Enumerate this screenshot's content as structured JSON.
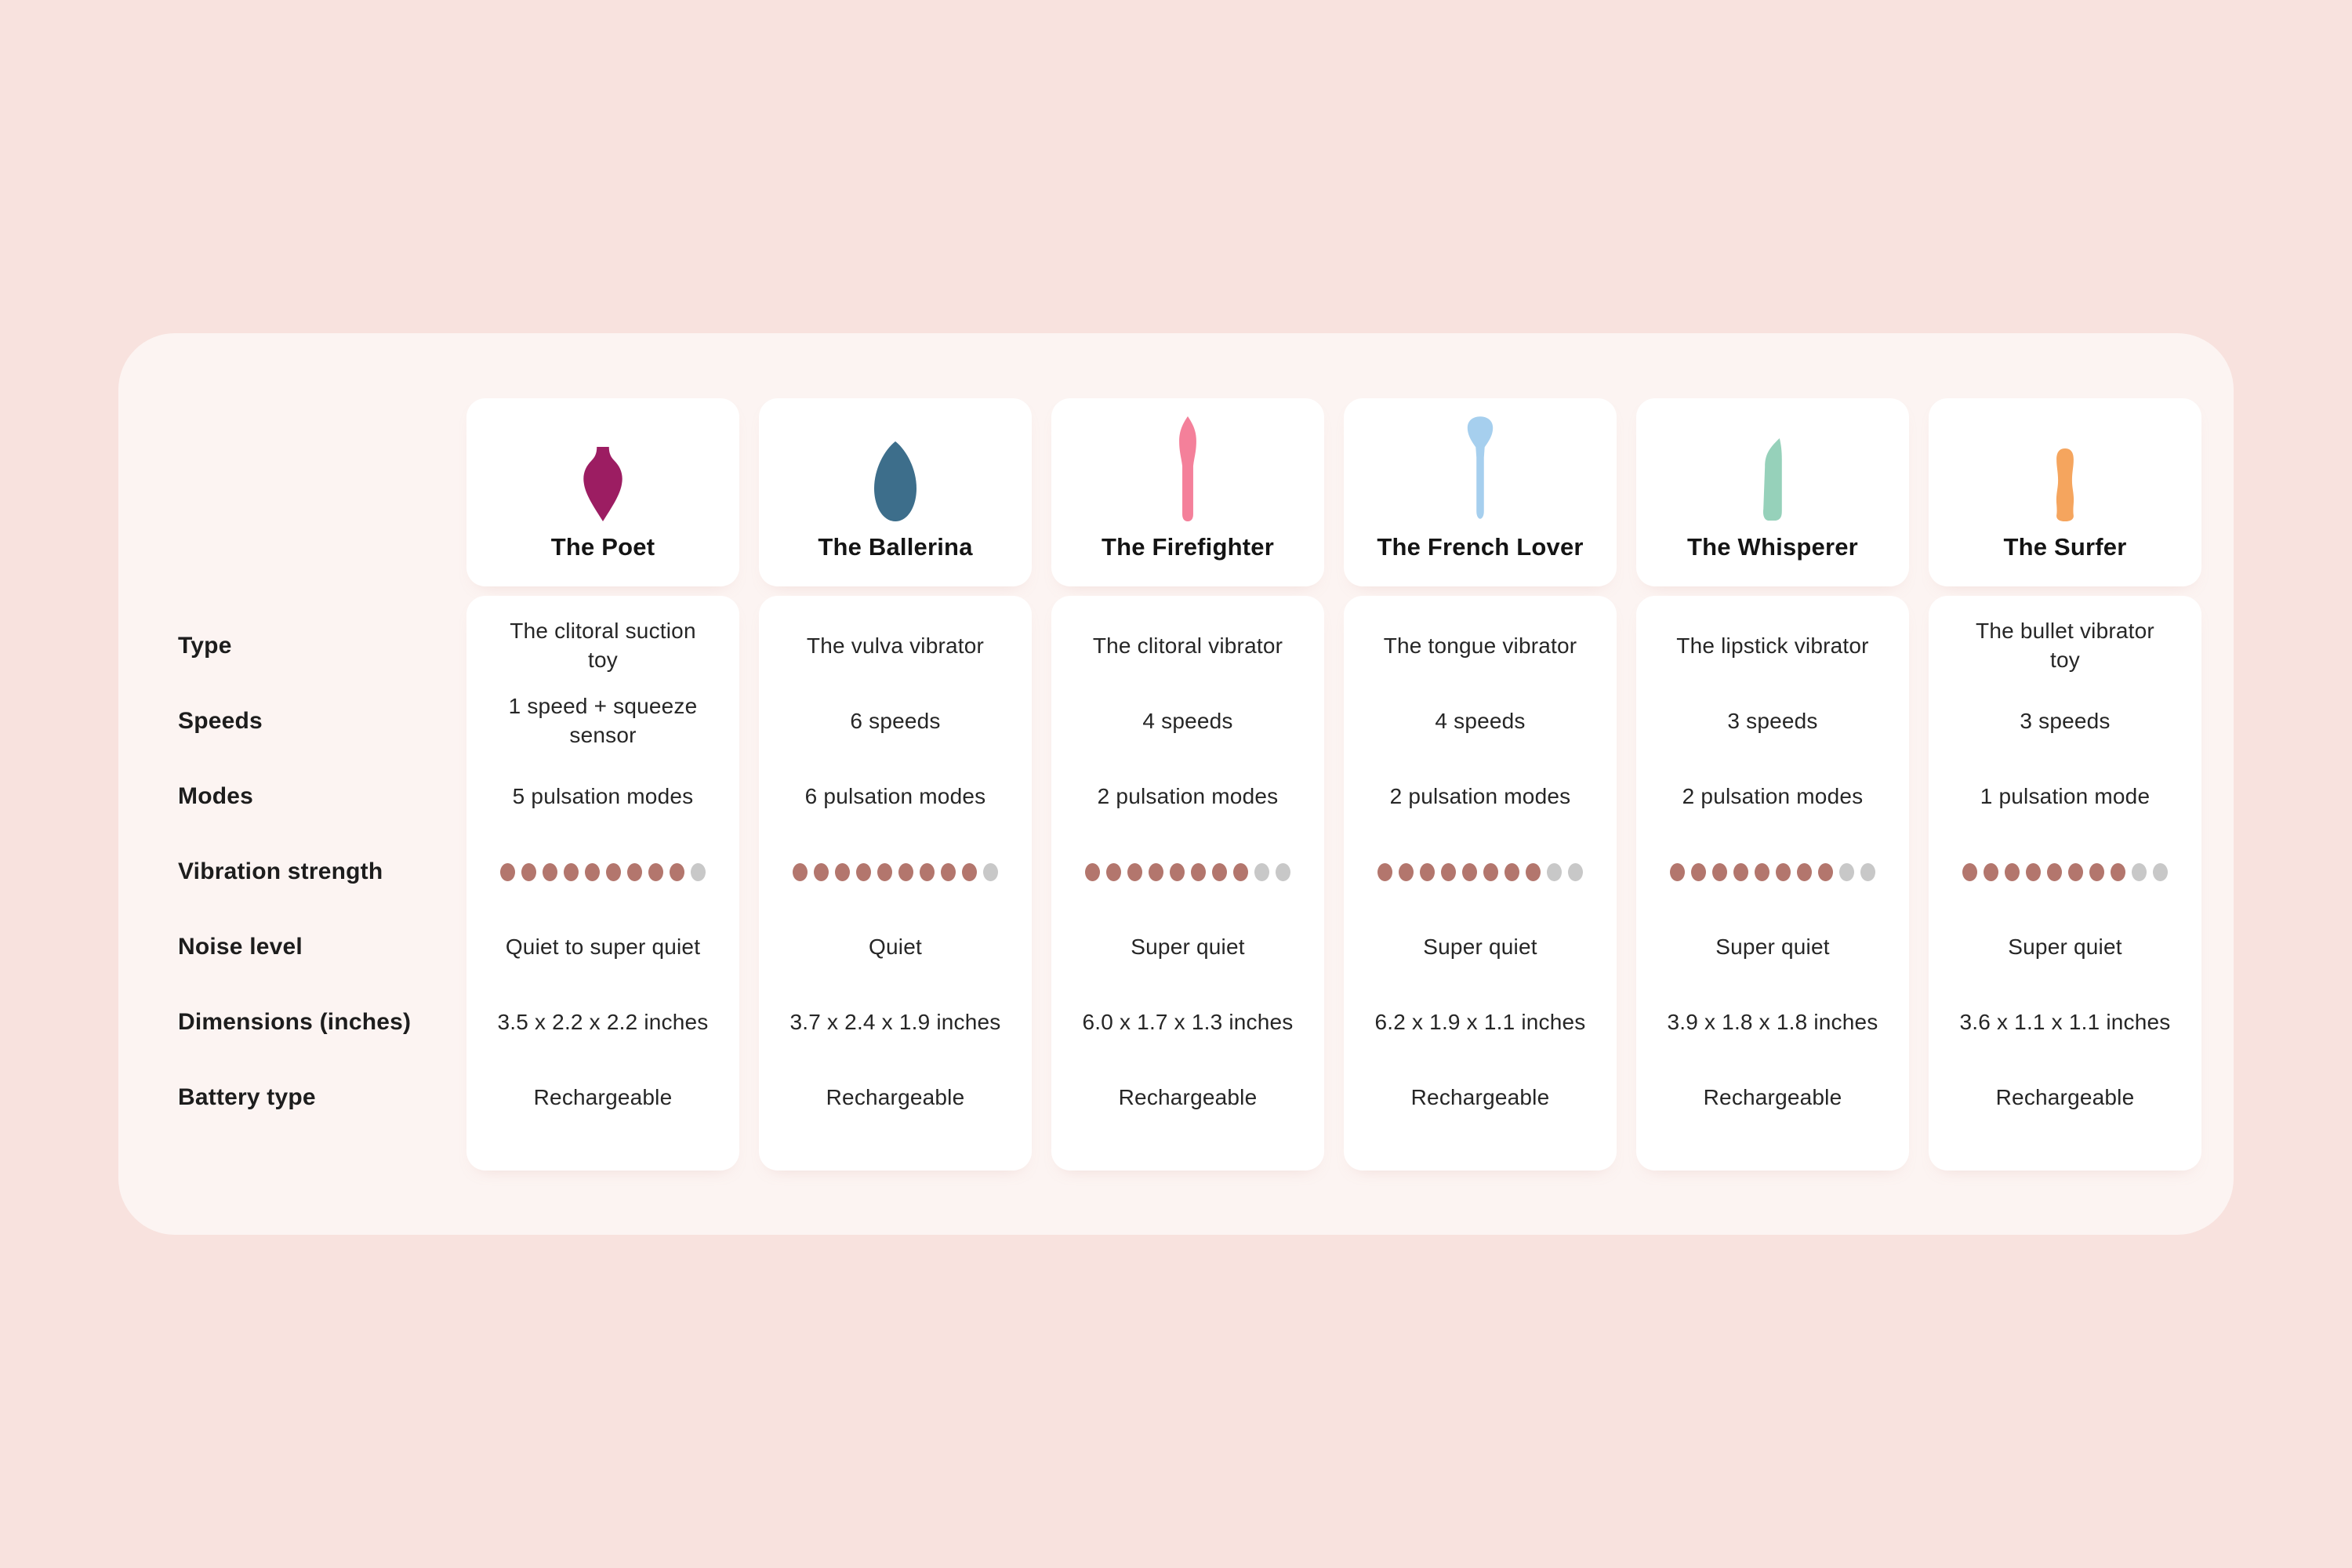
{
  "page": {
    "background": "#f8e2de",
    "container_background": "#fcf4f2",
    "card_background": "#ffffff"
  },
  "colors": {
    "dot_filled": "#b3766d",
    "dot_empty": "#c8c8c8",
    "label_text": "#1d1d1d",
    "value_text": "#262626"
  },
  "row_labels": [
    "Type",
    "Speeds",
    "Modes",
    "Vibration strength",
    "Noise level",
    "Dimensions (inches)",
    "Battery type"
  ],
  "vibration_scale_total": 10,
  "products": [
    {
      "name": "The Poet",
      "icon": "poet-icon",
      "icon_color": "#9c1d62",
      "type": "The clitoral suction\ntoy",
      "speeds": "1 speed + squeeze\nsensor",
      "modes": "5 pulsation modes",
      "vibration_filled": 9,
      "noise": "Quiet to super quiet",
      "dimensions": "3.5 x 2.2 x 2.2 inches",
      "battery": "Rechargeable"
    },
    {
      "name": "The Ballerina",
      "icon": "ballerina-icon",
      "icon_color": "#3d6e8b",
      "type": "The vulva vibrator",
      "speeds": "6 speeds",
      "modes": "6 pulsation modes",
      "vibration_filled": 9,
      "noise": "Quiet",
      "dimensions": "3.7 x 2.4 x 1.9 inches",
      "battery": "Rechargeable"
    },
    {
      "name": "The Firefighter",
      "icon": "firefighter-icon",
      "icon_color": "#f4809a",
      "type": "The clitoral vibrator",
      "speeds": "4 speeds",
      "modes": "2 pulsation modes",
      "vibration_filled": 8,
      "noise": "Super quiet",
      "dimensions": "6.0 x 1.7 x 1.3 inches",
      "battery": "Rechargeable"
    },
    {
      "name": "The French Lover",
      "icon": "french-lover-icon",
      "icon_color": "#a6cfee",
      "type": "The tongue vibrator",
      "speeds": "4 speeds",
      "modes": "2 pulsation modes",
      "vibration_filled": 8,
      "noise": "Super quiet",
      "dimensions": "6.2 x 1.9 x 1.1 inches",
      "battery": "Rechargeable"
    },
    {
      "name": "The Whisperer",
      "icon": "whisperer-icon",
      "icon_color": "#96d1ba",
      "type": "The lipstick vibrator",
      "speeds": "3 speeds",
      "modes": "2 pulsation modes",
      "vibration_filled": 8,
      "noise": "Super quiet",
      "dimensions": "3.9 x 1.8 x 1.8 inches",
      "battery": "Rechargeable"
    },
    {
      "name": "The Surfer",
      "icon": "surfer-icon",
      "icon_color": "#f5a55e",
      "type": "The bullet vibrator\ntoy",
      "speeds": "3 speeds",
      "modes": "1 pulsation mode",
      "vibration_filled": 8,
      "noise": "Super quiet",
      "dimensions": "3.6 x 1.1 x 1.1 inches",
      "battery": "Rechargeable"
    }
  ],
  "chart_data": {
    "type": "table",
    "title": "",
    "columns": [
      "",
      "The Poet",
      "The Ballerina",
      "The Firefighter",
      "The French Lover",
      "The Whisperer",
      "The Surfer"
    ],
    "rows": [
      [
        "Type",
        "The clitoral suction toy",
        "The vulva vibrator",
        "The clitoral vibrator",
        "The tongue vibrator",
        "The lipstick vibrator",
        "The bullet vibrator toy"
      ],
      [
        "Speeds",
        "1 speed + squeeze sensor",
        "6 speeds",
        "4 speeds",
        "4 speeds",
        "3 speeds",
        "3 speeds"
      ],
      [
        "Modes",
        "5 pulsation modes",
        "6 pulsation modes",
        "2 pulsation modes",
        "2 pulsation modes",
        "2 pulsation modes",
        "1 pulsation mode"
      ],
      [
        "Vibration strength",
        "9/10",
        "9/10",
        "8/10",
        "8/10",
        "8/10",
        "8/10"
      ],
      [
        "Noise level",
        "Quiet to super quiet",
        "Quiet",
        "Super quiet",
        "Super quiet",
        "Super quiet",
        "Super quiet"
      ],
      [
        "Dimensions (inches)",
        "3.5 x 2.2 x 2.2 inches",
        "3.7 x 2.4 x 1.9 inches",
        "6.0 x 1.7 x 1.3 inches",
        "6.2 x 1.9 x 1.1 inches",
        "3.9 x 1.8 x 1.8 inches",
        "3.6 x 1.1 x 1.1 inches"
      ],
      [
        "Battery type",
        "Rechargeable",
        "Rechargeable",
        "Rechargeable",
        "Rechargeable",
        "Rechargeable",
        "Rechargeable"
      ]
    ],
    "layout": "row labels on left, one white card column per product, vibration strength shown as 10-dot scale"
  }
}
